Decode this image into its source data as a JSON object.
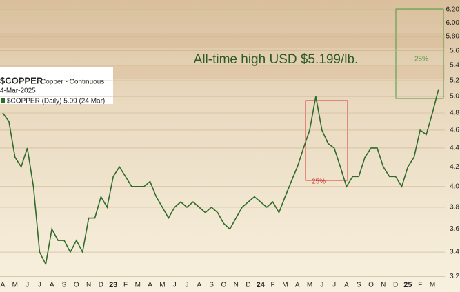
{
  "chart_data": {
    "type": "line",
    "title": "$COPPER",
    "subtitle": "Copper - Continuous",
    "date": "4-Mar-2025",
    "legend_text": "$COPPER (Daily) 5.09 (24 Mar)",
    "annotations": [
      "All-time high USD $5.199/lb.",
      "25%",
      "25%"
    ],
    "categories": [
      "A",
      null,
      "M",
      null,
      "J",
      null,
      "J",
      null,
      "A",
      null,
      "S",
      null,
      "O",
      null,
      "N",
      null,
      "D",
      null,
      "23",
      null,
      "F",
      null,
      "M",
      null,
      "A",
      null,
      "M",
      null,
      "J",
      null,
      "J",
      null,
      "A",
      null,
      "S",
      null,
      "O",
      null,
      "N",
      null,
      "D",
      null,
      "24",
      null,
      "F",
      null,
      "M",
      null,
      "A",
      null,
      "M",
      null,
      "J",
      null,
      "J",
      null,
      "A",
      null,
      "S",
      null,
      "O",
      null,
      "N",
      null,
      "D",
      null,
      "25",
      null,
      "F",
      null,
      "M",
      null
    ],
    "series": [
      {
        "name": "$COPPER",
        "color": "#2f6b2a",
        "values": [
          4.8,
          4.7,
          4.3,
          4.2,
          4.4,
          4.0,
          3.4,
          3.3,
          3.6,
          3.5,
          3.5,
          3.4,
          3.5,
          3.4,
          3.7,
          3.7,
          3.9,
          3.8,
          4.1,
          4.2,
          4.1,
          4.0,
          4.0,
          4.0,
          4.05,
          3.9,
          3.8,
          3.7,
          3.8,
          3.85,
          3.8,
          3.85,
          3.8,
          3.75,
          3.8,
          3.75,
          3.65,
          3.6,
          3.7,
          3.8,
          3.85,
          3.9,
          3.85,
          3.8,
          3.85,
          3.75,
          3.9,
          4.05,
          4.2,
          4.4,
          4.6,
          5.0,
          4.6,
          4.45,
          4.4,
          4.2,
          4.0,
          4.1,
          4.1,
          4.3,
          4.4,
          4.4,
          4.2,
          4.1,
          4.1,
          4.0,
          4.2,
          4.3,
          4.6,
          4.55,
          4.8,
          5.09
        ]
      }
    ],
    "log_scale": true,
    "ylim": [
      3.08,
      6.35
    ],
    "yticks": [
      3.2,
      3.4,
      3.6,
      3.8,
      {
        "value": 4,
        "label": "4.0"
      },
      4.2,
      4.4,
      4.6,
      4.8,
      {
        "value": 5,
        "label": "5.0"
      },
      5.2,
      5.4,
      5.6,
      {
        "value": 5.8,
        "label": "5.80"
      },
      {
        "value": 6,
        "label": "6.00"
      },
      {
        "value": 6.2,
        "label": "6.20"
      }
    ],
    "grid": true
  }
}
